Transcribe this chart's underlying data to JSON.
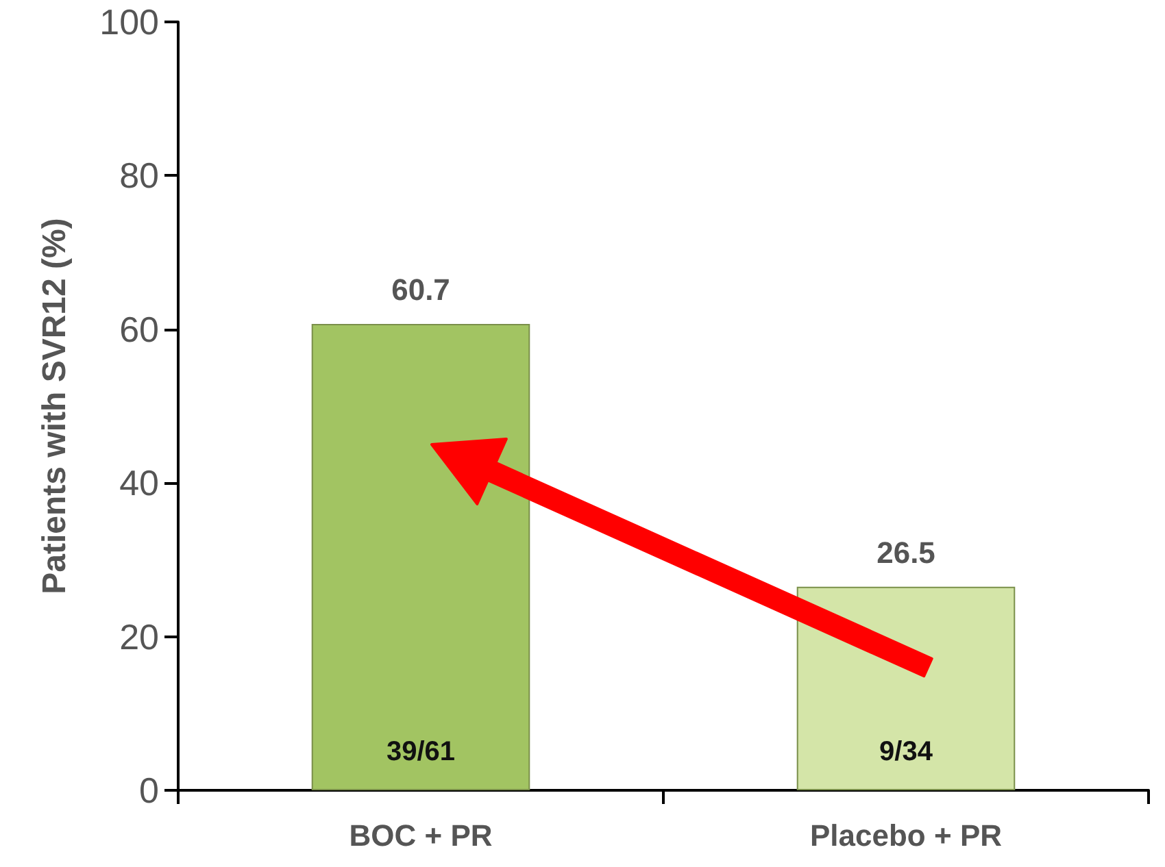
{
  "chart_data": {
    "type": "bar",
    "ylabel": "Patients with SVR12 (%)",
    "categories": [
      "BOC + PR",
      "Placebo + PR"
    ],
    "values": [
      60.7,
      26.5
    ],
    "colors": [
      "#a2c462",
      "#d4e5a8"
    ],
    "data_labels": true,
    "ylim": [
      0,
      100
    ],
    "yticks": [
      0,
      20,
      40,
      60,
      80,
      100
    ],
    "grid": false,
    "annotations": [
      "39/61",
      "9/34"
    ]
  }
}
